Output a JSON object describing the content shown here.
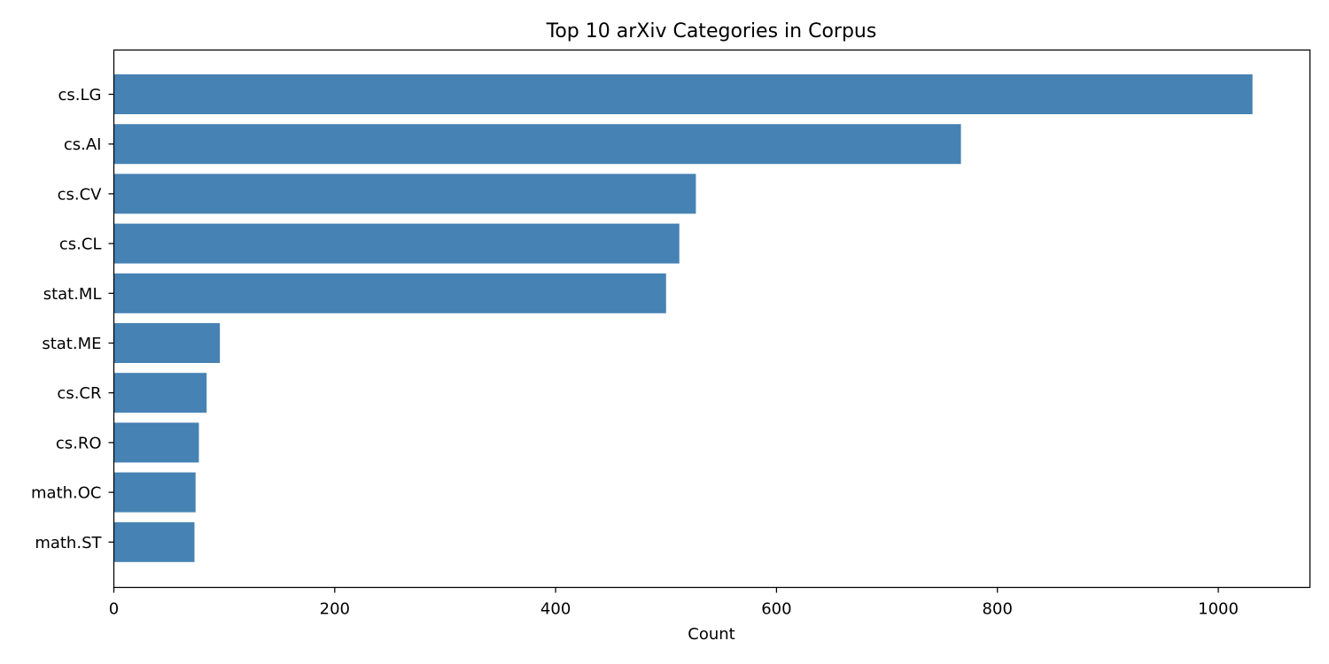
{
  "chart_data": {
    "type": "bar",
    "orientation": "horizontal",
    "title": "Top 10 arXiv Categories in Corpus",
    "xlabel": "Count",
    "ylabel": "",
    "categories": [
      "cs.LG",
      "cs.AI",
      "cs.CV",
      "cs.CL",
      "stat.ML",
      "stat.ME",
      "cs.CR",
      "cs.RO",
      "math.OC",
      "math.ST"
    ],
    "values": [
      1031,
      767,
      527,
      512,
      500,
      96,
      84,
      77,
      74,
      73
    ],
    "xlim": [
      0,
      1083
    ],
    "xticks": [
      0,
      200,
      400,
      600,
      800,
      1000
    ],
    "grid": false,
    "colors": {
      "bar": "#4682b4",
      "axis": "#000000",
      "background": "#ffffff"
    }
  }
}
